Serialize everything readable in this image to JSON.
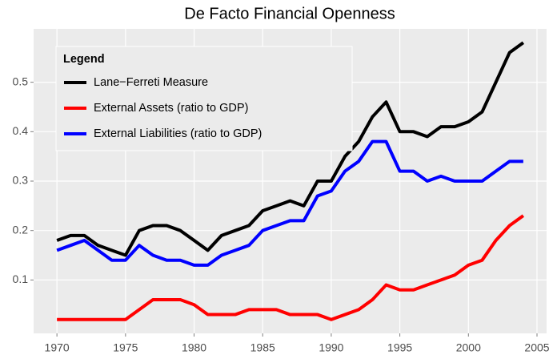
{
  "chart_data": {
    "type": "line",
    "title": "De Facto Financial Openness",
    "legend_title": "Legend",
    "legend_position": "top-left",
    "x": [
      1970,
      1971,
      1972,
      1973,
      1974,
      1975,
      1976,
      1977,
      1978,
      1979,
      1980,
      1981,
      1982,
      1983,
      1984,
      1985,
      1986,
      1987,
      1988,
      1989,
      1990,
      1991,
      1992,
      1993,
      1994,
      1995,
      1996,
      1997,
      1998,
      1999,
      2000,
      2001,
      2002,
      2003,
      2004
    ],
    "series": [
      {
        "name": "Lane−Ferreti Measure",
        "color": "#000000",
        "values": [
          0.18,
          0.19,
          0.19,
          0.17,
          0.16,
          0.15,
          0.2,
          0.21,
          0.21,
          0.2,
          0.18,
          0.16,
          0.19,
          0.2,
          0.21,
          0.24,
          0.25,
          0.26,
          0.25,
          0.3,
          0.3,
          0.35,
          0.38,
          0.43,
          0.46,
          0.4,
          0.4,
          0.39,
          0.41,
          0.41,
          0.42,
          0.44,
          0.5,
          0.56,
          0.58
        ]
      },
      {
        "name": "External Assets (ratio to GDP)",
        "color": "#ff0000",
        "values": [
          0.02,
          0.02,
          0.02,
          0.02,
          0.02,
          0.02,
          0.04,
          0.06,
          0.06,
          0.06,
          0.05,
          0.03,
          0.03,
          0.03,
          0.04,
          0.04,
          0.04,
          0.03,
          0.03,
          0.03,
          0.02,
          0.03,
          0.04,
          0.06,
          0.09,
          0.08,
          0.08,
          0.09,
          0.1,
          0.11,
          0.13,
          0.14,
          0.18,
          0.21,
          0.23
        ]
      },
      {
        "name": "External Liabilities (ratio to GDP)",
        "color": "#0000ff",
        "values": [
          0.16,
          0.17,
          0.18,
          0.16,
          0.14,
          0.14,
          0.17,
          0.15,
          0.14,
          0.14,
          0.13,
          0.13,
          0.15,
          0.16,
          0.17,
          0.2,
          0.21,
          0.22,
          0.22,
          0.27,
          0.28,
          0.32,
          0.34,
          0.38,
          0.38,
          0.32,
          0.32,
          0.3,
          0.31,
          0.3,
          0.3,
          0.3,
          0.32,
          0.34,
          0.34
        ]
      }
    ],
    "xlim": [
      1968.3,
      2005.7
    ],
    "xticks": [
      1970,
      1975,
      1980,
      1985,
      1990,
      1995,
      2000,
      2005
    ],
    "ylim": [
      -0.008,
      0.608
    ],
    "yticks": [
      0.1,
      0.2,
      0.3,
      0.4,
      0.5
    ],
    "grid": true
  }
}
